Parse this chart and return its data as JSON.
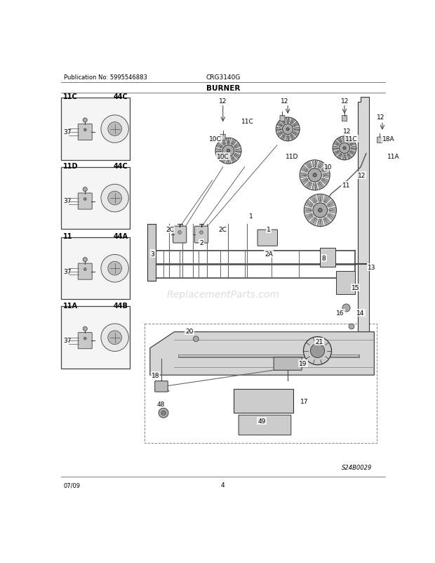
{
  "title": "BURNER",
  "pub_no": "Publication No: 5995546883",
  "model": "CRG3140G",
  "diagram_id": "S24B0029",
  "date": "07/09",
  "page": "4",
  "bg_color": "#ffffff",
  "border_color": "#000000",
  "text_color": "#000000",
  "fig_width": 6.2,
  "fig_height": 8.03,
  "dpi": 100
}
